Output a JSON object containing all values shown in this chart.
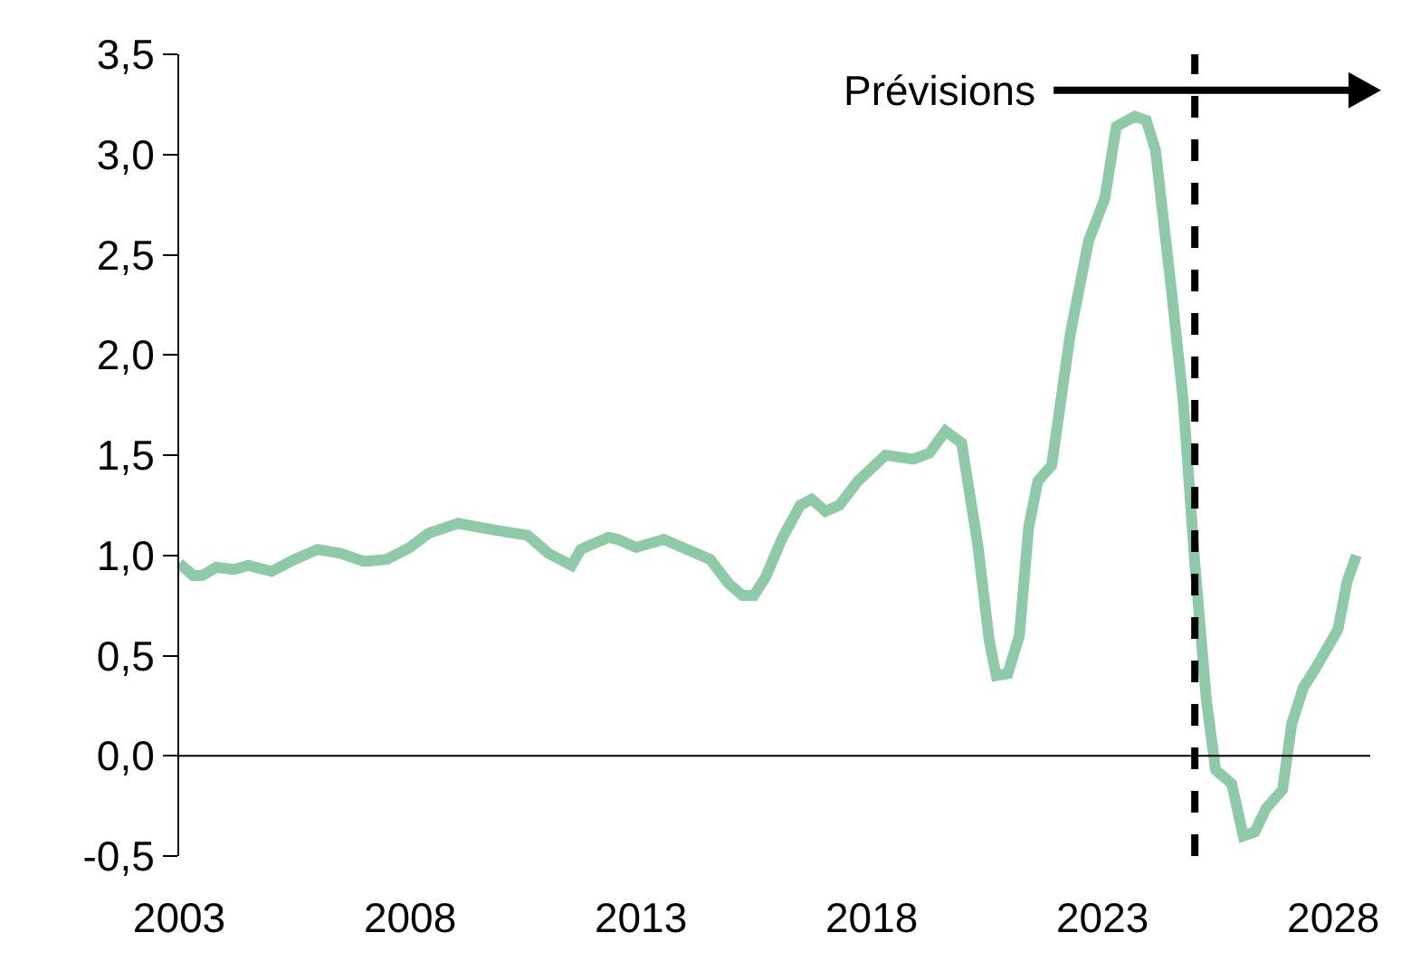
{
  "chart_data": {
    "type": "line",
    "x": [
      2003.0,
      2003.3,
      2003.5,
      2003.8,
      2004.2,
      2004.5,
      2005.0,
      2005.5,
      2006.0,
      2006.5,
      2007.0,
      2007.5,
      2008.0,
      2008.4,
      2009.05,
      2009.5,
      2010.0,
      2010.55,
      2011.0,
      2011.5,
      2011.7,
      2012.3,
      2012.5,
      2012.9,
      2013.5,
      2013.9,
      2014.5,
      2014.9,
      2015.2,
      2015.45,
      2015.7,
      2016.05,
      2016.45,
      2016.7,
      2017.0,
      2017.3,
      2017.7,
      2018.3,
      2018.9,
      2019.25,
      2019.6,
      2019.95,
      2020.3,
      2020.55,
      2020.7,
      2020.95,
      2021.2,
      2021.4,
      2021.6,
      2021.9,
      2022.3,
      2022.7,
      2023.05,
      2023.3,
      2023.7,
      2023.95,
      2024.15,
      2024.5,
      2024.75,
      2025.0,
      2025.25,
      2025.45,
      2025.8,
      2026.05,
      2026.3,
      2026.55,
      2026.9,
      2027.1,
      2027.35,
      2027.6,
      2028.1,
      2028.3,
      2028.5
    ],
    "series": [
      {
        "color": "#8fcaa8",
        "values": [
          0.96,
          0.9,
          0.9,
          0.94,
          0.93,
          0.95,
          0.92,
          0.98,
          1.03,
          1.01,
          0.97,
          0.98,
          1.04,
          1.11,
          1.16,
          1.14,
          1.12,
          1.1,
          1.01,
          0.95,
          1.03,
          1.09,
          1.08,
          1.04,
          1.08,
          1.04,
          0.98,
          0.86,
          0.8,
          0.8,
          0.89,
          1.08,
          1.25,
          1.28,
          1.22,
          1.25,
          1.37,
          1.5,
          1.48,
          1.51,
          1.62,
          1.56,
          1.05,
          0.57,
          0.4,
          0.41,
          0.6,
          1.14,
          1.37,
          1.45,
          2.1,
          2.57,
          2.78,
          3.14,
          3.19,
          3.17,
          3.02,
          2.31,
          1.77,
          0.96,
          0.28,
          -0.07,
          -0.14,
          -0.4,
          -0.38,
          -0.26,
          -0.17,
          0.16,
          0.34,
          0.43,
          0.63,
          0.87,
          1.0
        ]
      }
    ],
    "xlim": [
      2003,
      2028.8
    ],
    "xticks": [
      2003,
      2008,
      2013,
      2018,
      2023,
      2028
    ],
    "ylim": [
      -0.5,
      3.5
    ],
    "yticks": [
      {
        "value": -0.5,
        "label": "-0,5"
      },
      {
        "value": 0,
        "label": "0,0"
      },
      {
        "value": 0.5,
        "label": "0,5"
      },
      {
        "value": 1,
        "label": "1,0"
      },
      {
        "value": 1.5,
        "label": "1,5"
      },
      {
        "value": 2,
        "label": "2,0"
      },
      {
        "value": 2.5,
        "label": "2,5"
      },
      {
        "value": 3,
        "label": "3,0"
      },
      {
        "value": 3.5,
        "label": "3,5"
      }
    ],
    "grid": false,
    "marker": "none",
    "line_style": "solid",
    "ref_lines": [
      {
        "axis": "y",
        "value": 0,
        "color": "#000000",
        "line_style": "solid"
      },
      {
        "axis": "x",
        "value": 2025,
        "label": "Prévisions",
        "color": "#000000",
        "line_style": "dashed"
      }
    ]
  }
}
